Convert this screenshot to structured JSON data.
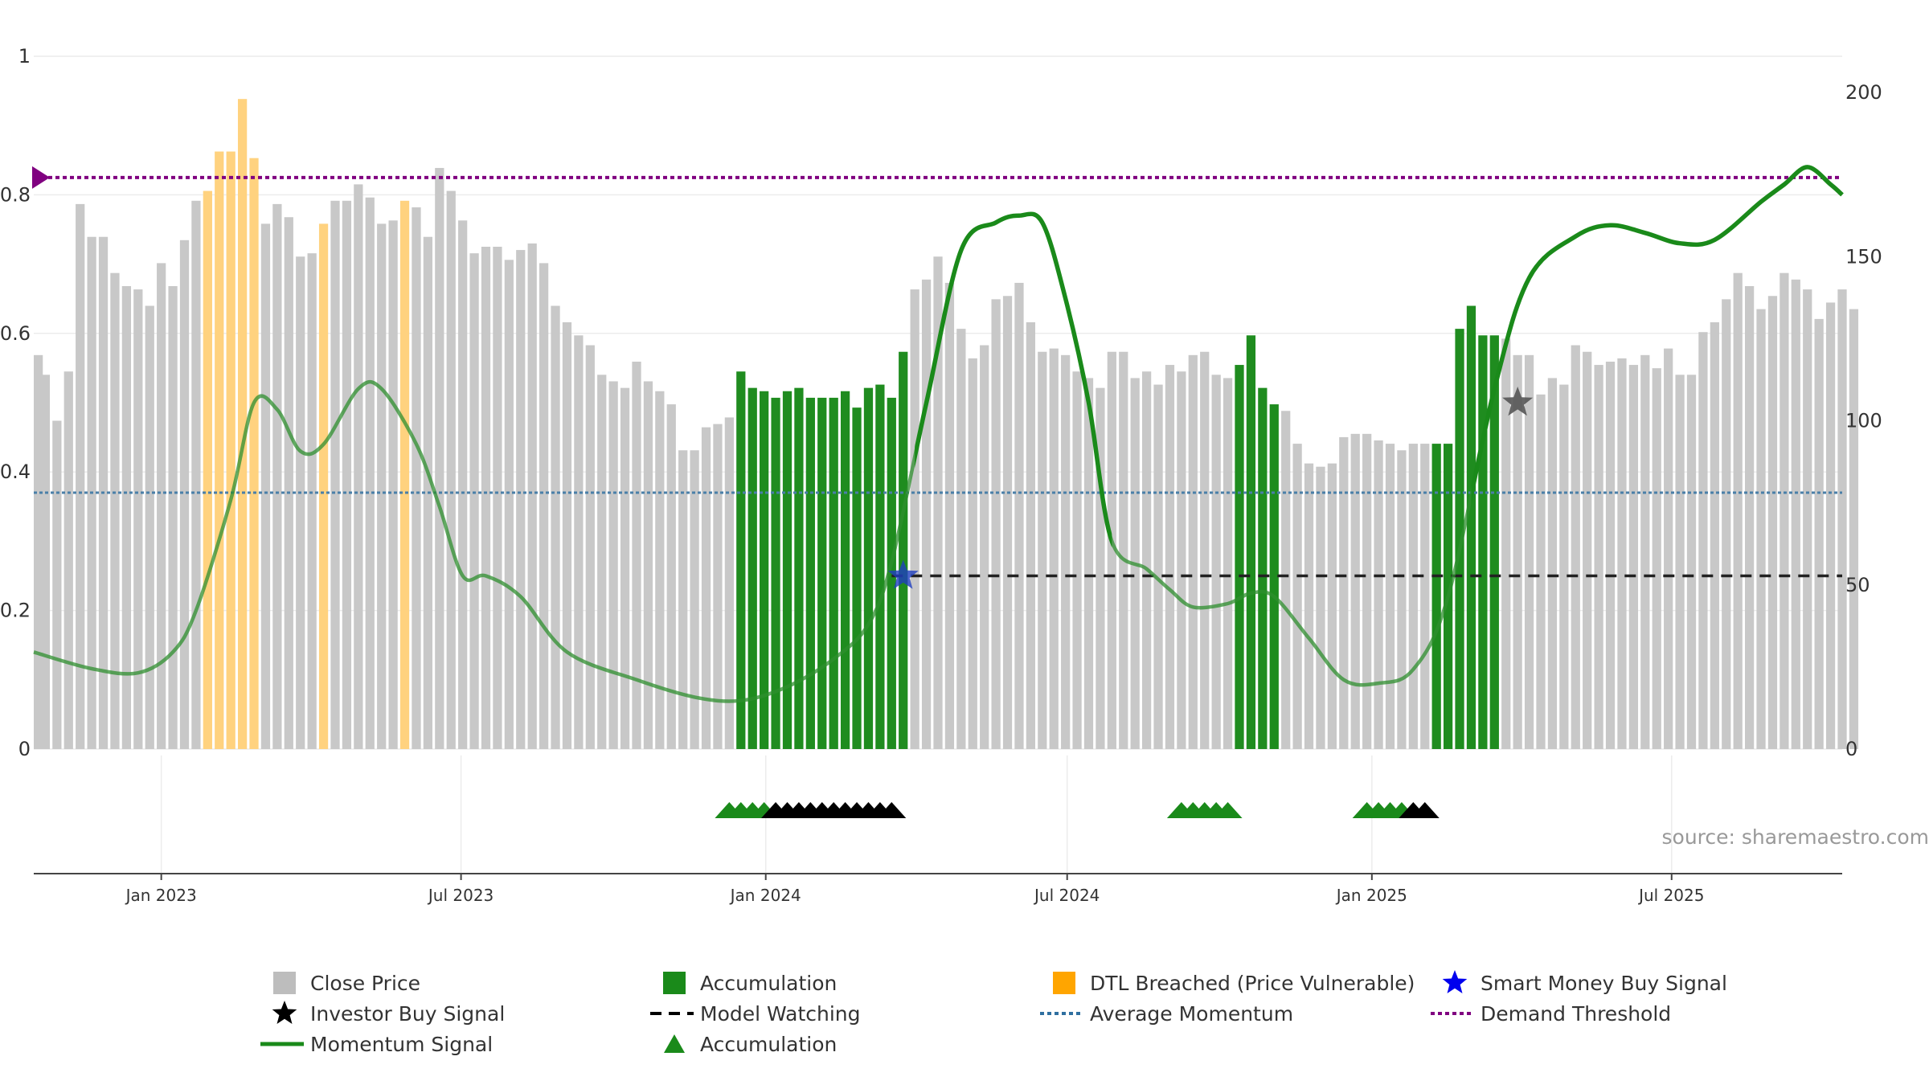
{
  "watermark": "source: sharemaestro.com",
  "colors": {
    "price_grey": "#c8c8c8",
    "accumulation": "#2e8b2e",
    "dtl_breached": "#ffd27f",
    "momentum_line": "#1a8a1a",
    "average_momentum": "#4a7fa8",
    "demand_threshold": "#800080",
    "model_watching": "#222222",
    "smart_money_star": "#1f3fbf",
    "investor_star": "#555555"
  },
  "legend": [
    {
      "key": "close_price",
      "label": "Close Price",
      "icon": "grey-square-icon"
    },
    {
      "key": "accumulation_bar",
      "label": "Accumulation",
      "icon": "green-square-icon"
    },
    {
      "key": "dtl",
      "label": "DTL Breached (Price Vulnerable)",
      "icon": "orange-square-icon"
    },
    {
      "key": "smart_money",
      "label": "Smart Money Buy Signal",
      "icon": "blue-star-icon"
    },
    {
      "key": "investor",
      "label": "Investor Buy Signal",
      "icon": "black-star-icon"
    },
    {
      "key": "model_watching",
      "label": "Model Watching",
      "icon": "dashed-line-icon"
    },
    {
      "key": "avg_momentum",
      "label": "Average Momentum",
      "icon": "dotted-line-icon"
    },
    {
      "key": "demand_threshold",
      "label": "Demand Threshold",
      "icon": "purple-dotted-line-icon"
    },
    {
      "key": "momentum_signal",
      "label": "Momentum Signal",
      "icon": "green-line-icon"
    },
    {
      "key": "accumulation_marker",
      "label": "Accumulation",
      "icon": "green-triangle-icon"
    }
  ],
  "chart_data": {
    "type": "bar",
    "title": "",
    "xlabel": "",
    "ylabel_left": "",
    "ylabel_right": "",
    "x_range": [
      "2022-10-16",
      "2025-10-12"
    ],
    "x_ticks": [
      "Jan 2023",
      "Jul 2023",
      "Jan 2024",
      "Jul 2024",
      "Jan 2025",
      "Jul 2025"
    ],
    "x_tick_dates": [
      "2023-01-01",
      "2023-07-01",
      "2024-01-01",
      "2024-07-01",
      "2025-01-01",
      "2025-07-01"
    ],
    "y_left_ticks": [
      "0",
      "0.2",
      "0.4",
      "0.6",
      "0.8",
      "1"
    ],
    "y_left_range": [
      0,
      1
    ],
    "y_right_ticks": [
      "0",
      "50",
      "100",
      "150",
      "200"
    ],
    "y_right_range": [
      0,
      200
    ],
    "bar_start_date": "2022-10-16",
    "bar_interval_days": 7,
    "close_price": [
      120,
      114,
      100,
      115,
      166,
      156,
      156,
      145,
      141,
      140,
      135,
      148,
      141,
      155,
      167,
      170,
      182,
      182,
      198,
      180,
      160,
      166,
      162,
      150,
      151,
      160,
      167,
      167,
      172,
      168,
      160,
      161,
      167,
      165,
      156,
      177,
      170,
      161,
      151,
      153,
      153,
      149,
      152,
      154,
      148,
      135,
      130,
      126,
      123,
      114,
      112,
      110,
      118,
      112,
      109,
      105,
      91,
      91,
      98,
      99,
      101,
      115,
      110,
      109,
      107,
      109,
      110,
      107,
      107,
      107,
      109,
      104,
      110,
      111,
      107,
      121,
      140,
      143,
      150,
      142,
      128,
      119,
      123,
      137,
      138,
      142,
      130,
      121,
      122,
      120,
      115,
      113,
      110,
      121,
      121,
      113,
      115,
      111,
      117,
      115,
      120,
      121,
      114,
      113,
      117,
      126,
      110,
      105,
      103,
      93,
      87,
      86,
      87,
      95,
      96,
      96,
      94,
      93,
      91,
      93,
      93,
      93,
      93,
      128,
      135,
      126,
      126,
      125,
      120,
      120,
      108,
      113,
      111,
      123,
      121,
      117,
      118,
      119,
      117,
      120,
      116,
      122,
      114,
      114,
      127,
      130,
      137,
      145,
      141,
      134,
      138,
      145,
      143,
      140,
      131,
      136,
      140,
      134
    ],
    "bar_status": "gggggggggggggggooooogggggoggggggoggggggggggggggggggggggggggggaaaaaaaaaaaaaaaggggggggggggggggggggggggggggaaaagggggggggggggaaaaaaggggggggggggggggggggggggggggggggggggggg",
    "momentum_signal": [
      [
        "2022-10-16",
        0.14
      ],
      [
        "2022-11-20",
        0.116
      ],
      [
        "2022-12-18",
        0.11
      ],
      [
        "2023-01-08",
        0.14
      ],
      [
        "2023-01-22",
        0.2
      ],
      [
        "2023-02-12",
        0.36
      ],
      [
        "2023-02-26",
        0.5
      ],
      [
        "2023-03-12",
        0.49
      ],
      [
        "2023-03-26",
        0.43
      ],
      [
        "2023-04-09",
        0.44
      ],
      [
        "2023-04-30",
        0.52
      ],
      [
        "2023-05-14",
        0.52
      ],
      [
        "2023-06-04",
        0.44
      ],
      [
        "2023-06-18",
        0.35
      ],
      [
        "2023-07-02",
        0.25
      ],
      [
        "2023-07-16",
        0.25
      ],
      [
        "2023-08-06",
        0.22
      ],
      [
        "2023-09-03",
        0.14
      ],
      [
        "2023-10-15",
        0.1
      ],
      [
        "2023-11-19",
        0.075
      ],
      [
        "2023-12-17",
        0.07
      ],
      [
        "2024-01-14",
        0.09
      ],
      [
        "2024-02-11",
        0.13
      ],
      [
        "2024-03-03",
        0.18
      ],
      [
        "2024-03-17",
        0.27
      ],
      [
        "2024-04-07",
        0.5
      ],
      [
        "2024-04-28",
        0.72
      ],
      [
        "2024-05-19",
        0.76
      ],
      [
        "2024-06-02",
        0.77
      ],
      [
        "2024-06-16",
        0.76
      ],
      [
        "2024-06-30",
        0.65
      ],
      [
        "2024-07-14",
        0.5
      ],
      [
        "2024-07-28",
        0.3
      ],
      [
        "2024-08-18",
        0.26
      ],
      [
        "2024-09-01",
        0.23
      ],
      [
        "2024-09-15",
        0.205
      ],
      [
        "2024-10-06",
        0.21
      ],
      [
        "2024-10-20",
        0.225
      ],
      [
        "2024-11-03",
        0.22
      ],
      [
        "2024-11-24",
        0.16
      ],
      [
        "2024-12-15",
        0.1
      ],
      [
        "2025-01-05",
        0.095
      ],
      [
        "2025-01-26",
        0.115
      ],
      [
        "2025-02-16",
        0.22
      ],
      [
        "2025-03-16",
        0.52
      ],
      [
        "2025-04-06",
        0.68
      ],
      [
        "2025-05-04",
        0.74
      ],
      [
        "2025-05-25",
        0.756
      ],
      [
        "2025-06-15",
        0.745
      ],
      [
        "2025-07-06",
        0.73
      ],
      [
        "2025-07-27",
        0.735
      ],
      [
        "2025-08-24",
        0.79
      ],
      [
        "2025-09-07",
        0.815
      ],
      [
        "2025-09-21",
        0.84
      ],
      [
        "2025-10-05",
        0.815
      ],
      [
        "2025-10-12",
        0.8
      ]
    ],
    "momentum_highlight": "2023-06-04/2025-03-09 faded; 2024-04-01/2024-07-28 and 2025-03-02/2025-10-12 solid",
    "average_momentum": 0.37,
    "demand_threshold": 0.825,
    "model_watching": {
      "from": "2024-03-17",
      "to": "2025-10-12",
      "value": 0.25
    },
    "smart_money_buy": [
      {
        "date": "2024-03-24",
        "value": 0.25
      }
    ],
    "investor_buy": [
      {
        "date": "2025-03-30",
        "value": 0.5
      }
    ],
    "accumulation_markers": [
      {
        "start": "2023-12-10",
        "count": 4,
        "color": "green"
      },
      {
        "start": "2024-01-07",
        "count": 11,
        "color": "black"
      },
      {
        "start": "2024-09-08",
        "count": 5,
        "color": "green"
      },
      {
        "start": "2024-12-29",
        "count": 4,
        "color": "green"
      },
      {
        "start": "2025-01-26",
        "count": 2,
        "color": "black"
      }
    ]
  }
}
